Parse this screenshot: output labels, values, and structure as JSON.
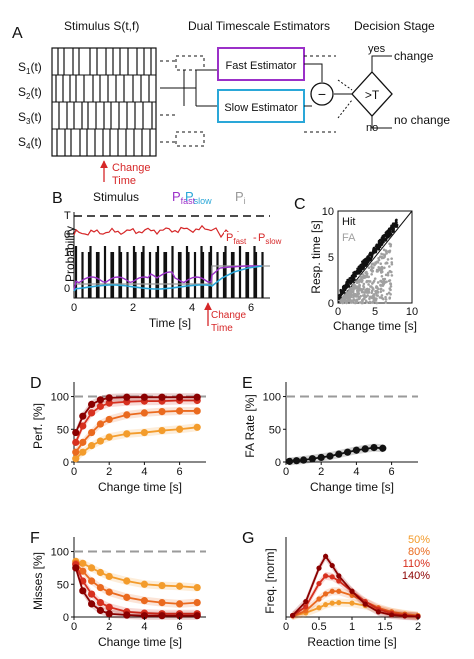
{
  "panel_a": {
    "letter": "A",
    "stimulus_title": "Stimulus S(t,f)",
    "estimators_title": "Dual Timescale Estimators",
    "decision_title": "Decision Stage",
    "channels": [
      {
        "base": "S",
        "sub": "1",
        "tail": "(t)"
      },
      {
        "base": "S",
        "sub": "2",
        "tail": "(t)"
      },
      {
        "base": "S",
        "sub": "3",
        "tail": "(t)"
      },
      {
        "base": "S",
        "sub": "4",
        "tail": "(t)"
      }
    ],
    "fast_label": "Fast Estimator",
    "slow_label": "Slow Estimator",
    "fast_color": "#9b30c8",
    "slow_color": "#2aa7d8",
    "minus": "−",
    "threshold": ">T",
    "yes": "yes",
    "no": "no",
    "change": "change",
    "no_change": "no change",
    "change_time_1": "Change",
    "change_time_2": "Time",
    "accent": "#d62728"
  },
  "panel_b": {
    "letter": "B",
    "legend_stimulus": "Stimulus",
    "p_fast": "P",
    "p_fast_sub": "fast",
    "p_slow": "P",
    "p_slow_sub": "slow",
    "p_i": "P",
    "p_i_sub": "i",
    "tick_T": "T",
    "tick_0a": "0",
    "tick_1": "1",
    "tick_0b": "0",
    "ylabel": "Probability",
    "xlabel": "Time [s]",
    "xticks": [
      "0",
      "2",
      "4",
      "6"
    ],
    "inset_p_fast": "P",
    "inset_p_fast_sub": "fast",
    "inset_minus": "-",
    "inset_p_slow": "P",
    "inset_p_slow_sub": "slow",
    "change_time_1": "Change",
    "change_time_2": "Time"
  },
  "chart_data": [
    {
      "id": "C",
      "type": "scatter",
      "letter": "C",
      "xlabel": "Change time [s]",
      "ylabel": "Resp. time [s]",
      "xlim": [
        0,
        10
      ],
      "ylim": [
        0,
        10
      ],
      "xticks": [
        "0",
        "5",
        "10"
      ],
      "yticks": [
        "0",
        "5",
        "10"
      ],
      "legend": [
        {
          "label": "Hit",
          "color": "#111111"
        },
        {
          "label": "FA",
          "color": "#a0a0a0"
        }
      ],
      "series": [
        {
          "name": "Hit",
          "color": "#111111",
          "description_points": [
            [
              0.3,
              0.8
            ],
            [
              1,
              1.6
            ],
            [
              2,
              2.6
            ],
            [
              3,
              3.6
            ],
            [
              4,
              4.6
            ],
            [
              5,
              5.6
            ],
            [
              6,
              6.6
            ],
            [
              7,
              7.6
            ],
            [
              7.8,
              8.4
            ]
          ]
        },
        {
          "name": "FA",
          "color": "#a0a0a0",
          "description_points": [
            [
              0.5,
              0.3
            ],
            [
              1,
              0.6
            ],
            [
              2,
              1.2
            ],
            [
              3,
              1.8
            ],
            [
              4,
              2.6
            ],
            [
              5,
              3.2
            ],
            [
              6,
              3.8
            ],
            [
              6.5,
              4.2
            ]
          ]
        }
      ]
    },
    {
      "id": "D",
      "type": "line",
      "letter": "D",
      "xlabel": "Change time [s]",
      "ylabel": "Perf. [%]",
      "xlim": [
        0,
        7.5
      ],
      "ylim": [
        0,
        110
      ],
      "xticks": [
        0,
        2,
        4,
        6
      ],
      "yticks": [
        0,
        50,
        100
      ],
      "reference_line": 100,
      "x": [
        0.1,
        0.5,
        1.0,
        1.5,
        2.0,
        3.0,
        4.0,
        5.0,
        6.0,
        7.0
      ],
      "series": [
        {
          "name": "50%",
          "color": "#f39c2c",
          "values": [
            5,
            15,
            25,
            32,
            38,
            43,
            45,
            48,
            50,
            53
          ]
        },
        {
          "name": "80%",
          "color": "#ea6a1f",
          "values": [
            15,
            30,
            45,
            58,
            65,
            72,
            75,
            77,
            78,
            78
          ]
        },
        {
          "name": "110%",
          "color": "#d7301f",
          "values": [
            30,
            55,
            75,
            85,
            90,
            92,
            93,
            93,
            94,
            94
          ]
        },
        {
          "name": "140%",
          "color": "#8b0000",
          "values": [
            45,
            70,
            88,
            95,
            98,
            99,
            99,
            99,
            99,
            99
          ]
        }
      ]
    },
    {
      "id": "E",
      "type": "line",
      "letter": "E",
      "xlabel": "Change time [s]",
      "ylabel": "FA Rate [%]",
      "xlim": [
        0,
        7.5
      ],
      "ylim": [
        0,
        110
      ],
      "xticks": [
        0,
        2,
        4,
        6
      ],
      "yticks": [
        0,
        50,
        100
      ],
      "reference_line": 100,
      "x": [
        0.2,
        0.6,
        1.0,
        1.5,
        2.0,
        2.5,
        3.0,
        3.5,
        4.0,
        4.5,
        5.0,
        5.5
      ],
      "series": [
        {
          "name": "FA",
          "color": "#111111",
          "values": [
            1,
            2,
            3,
            5,
            7,
            9,
            12,
            15,
            18,
            20,
            22,
            21
          ]
        }
      ]
    },
    {
      "id": "F",
      "type": "line",
      "letter": "F",
      "xlabel": "Change time [s]",
      "ylabel": "Misses [%]",
      "xlim": [
        0,
        7.5
      ],
      "ylim": [
        0,
        110
      ],
      "xticks": [
        0,
        2,
        4,
        6
      ],
      "yticks": [
        0,
        50,
        100
      ],
      "reference_line": 100,
      "x": [
        0.1,
        0.5,
        1.0,
        1.5,
        2.0,
        3.0,
        4.0,
        5.0,
        6.0,
        7.0
      ],
      "series": [
        {
          "name": "50%",
          "color": "#f39c2c",
          "values": [
            85,
            82,
            75,
            68,
            62,
            55,
            50,
            48,
            47,
            45
          ]
        },
        {
          "name": "80%",
          "color": "#ea6a1f",
          "values": [
            82,
            70,
            55,
            45,
            38,
            30,
            25,
            22,
            20,
            22
          ]
        },
        {
          "name": "110%",
          "color": "#d7301f",
          "values": [
            80,
            55,
            35,
            22,
            15,
            8,
            6,
            5,
            5,
            5
          ]
        },
        {
          "name": "140%",
          "color": "#8b0000",
          "values": [
            75,
            40,
            20,
            10,
            5,
            3,
            2,
            2,
            2,
            2
          ]
        }
      ]
    },
    {
      "id": "G",
      "type": "line",
      "letter": "G",
      "xlabel": "Reaction time [s]",
      "ylabel": "Freq. [norm]",
      "xlim": [
        0,
        2
      ],
      "ylim": [
        0,
        0.14
      ],
      "xticks": [
        "0",
        "0.5",
        "1",
        "1.5",
        "2"
      ],
      "x": [
        0.1,
        0.3,
        0.5,
        0.6,
        0.7,
        0.8,
        1.0,
        1.2,
        1.4,
        1.6,
        1.8,
        2.0
      ],
      "legend": [
        {
          "label": "50%",
          "color": "#f39c2c"
        },
        {
          "label": "80%",
          "color": "#ea6a1f"
        },
        {
          "label": "110%",
          "color": "#d7301f"
        },
        {
          "label": "140%",
          "color": "#8b0000"
        }
      ],
      "series": [
        {
          "name": "50%",
          "color": "#f39c2c",
          "values": [
            0.002,
            0.008,
            0.018,
            0.024,
            0.027,
            0.028,
            0.027,
            0.022,
            0.015,
            0.01,
            0.006,
            0.003
          ]
        },
        {
          "name": "80%",
          "color": "#ea6a1f",
          "values": [
            0.002,
            0.012,
            0.035,
            0.045,
            0.05,
            0.05,
            0.042,
            0.03,
            0.018,
            0.01,
            0.005,
            0.002
          ]
        },
        {
          "name": "110%",
          "color": "#d7301f",
          "values": [
            0.003,
            0.02,
            0.065,
            0.08,
            0.078,
            0.07,
            0.05,
            0.03,
            0.015,
            0.007,
            0.003,
            0.001
          ]
        },
        {
          "name": "140%",
          "color": "#8b0000",
          "values": [
            0.003,
            0.03,
            0.095,
            0.118,
            0.1,
            0.08,
            0.05,
            0.025,
            0.01,
            0.004,
            0.002,
            0.001
          ]
        }
      ]
    }
  ]
}
